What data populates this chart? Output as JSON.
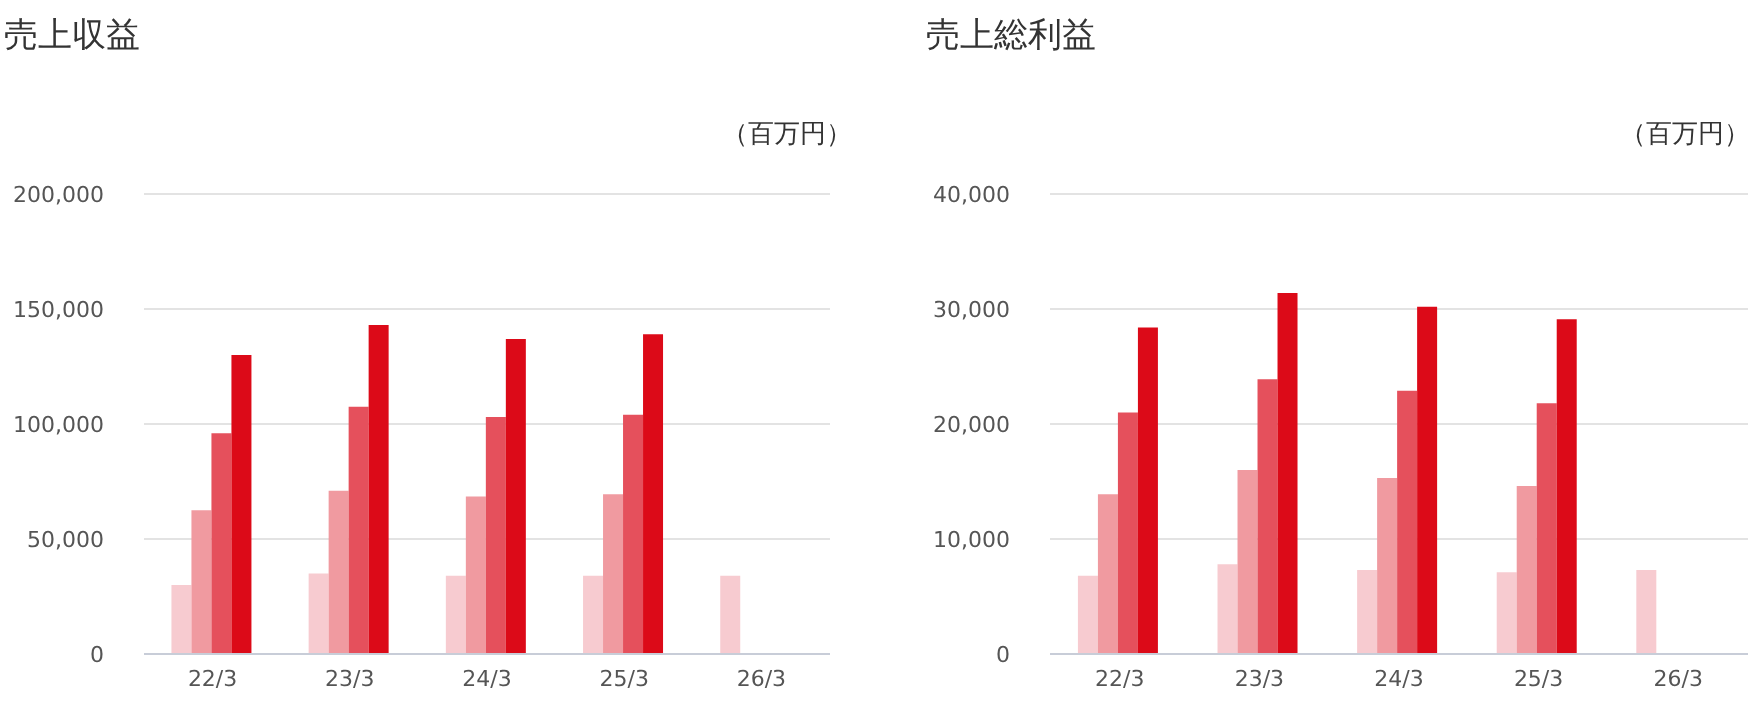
{
  "chart_data": [
    {
      "type": "bar",
      "title": "売上収益",
      "ylabel": "（百万円）",
      "categories": [
        "22/3",
        "23/3",
        "24/3",
        "25/3",
        "26/3"
      ],
      "ylim": [
        0,
        200000
      ],
      "yticks": [
        0,
        {
          "value": 50000,
          "label": "50,000"
        },
        {
          "value": 100000,
          "label": "100,000"
        },
        {
          "value": 150000,
          "label": "150,000"
        },
        {
          "value": 200000,
          "label": "200,000"
        }
      ],
      "grid": "y",
      "series": [
        {
          "color": "#f7cbd0",
          "values": [
            30000,
            35000,
            34000,
            34000,
            34000
          ]
        },
        {
          "color": "#f09aa0",
          "values": [
            62500,
            71000,
            68500,
            69500,
            null
          ]
        },
        {
          "color": "#e5505c",
          "values": [
            96000,
            107500,
            103000,
            104000,
            null
          ]
        },
        {
          "color": "#dc0a18",
          "values": [
            130000,
            143000,
            137000,
            139000,
            null
          ]
        }
      ]
    },
    {
      "type": "bar",
      "title": "売上総利益",
      "ylabel": "（百万円）",
      "categories": [
        "22/3",
        "23/3",
        "24/3",
        "25/3",
        "26/3"
      ],
      "ylim": [
        0,
        40000
      ],
      "yticks": [
        0,
        {
          "value": 10000,
          "label": "10,000"
        },
        {
          "value": 20000,
          "label": "20,000"
        },
        {
          "value": 30000,
          "label": "30,000"
        },
        {
          "value": 40000,
          "label": "40,000"
        }
      ],
      "grid": "y",
      "series": [
        {
          "color": "#f7cbd0",
          "values": [
            6800,
            7800,
            7300,
            7100,
            7300
          ]
        },
        {
          "color": "#f09aa0",
          "values": [
            13900,
            16000,
            15300,
            14600,
            null
          ]
        },
        {
          "color": "#e5505c",
          "values": [
            21000,
            23900,
            22900,
            21800,
            null
          ]
        },
        {
          "color": "#dc0a18",
          "values": [
            28400,
            31400,
            30200,
            29100,
            null
          ]
        }
      ]
    }
  ]
}
